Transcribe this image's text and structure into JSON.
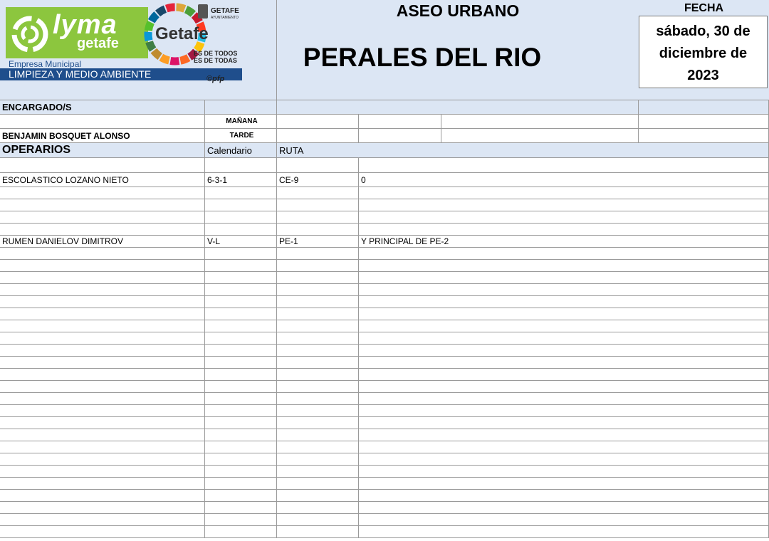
{
  "header": {
    "logo": {
      "brand": "lyma",
      "brand_sub": "getafe",
      "city": "Getafe",
      "council": "GETAFE",
      "council_sub": "AYUNTAMIENTO",
      "motto_1": "ES DE TODOS",
      "motto_2": "ES DE TODAS",
      "company": "Empresa Municipal",
      "department": "LIMPIEZA Y MEDIO AMBIENTE",
      "credit": "©pfp"
    },
    "title": "ASEO URBANO",
    "zone": "PERALES DEL RIO",
    "date_label": "FECHA",
    "date": "sábado, 30 de diciembre de 2023"
  },
  "encargados": {
    "label": "ENCARGADO/S",
    "morning_label": "MAÑANA",
    "afternoon_label": "TARDE",
    "afternoon_name": "BENJAMIN BOSQUET ALONSO"
  },
  "operarios": {
    "label": "OPERARIOS",
    "columns": [
      "Calendario",
      "RUTA"
    ],
    "rows": [
      [
        "ESCOLASTICO LOZANO NIETO",
        "6-3-1",
        "CE-9",
        "0"
      ],
      [
        "RUMEN DANIELOV DIMITROV",
        "V-L",
        "PE-1",
        "Y PRINCIPAL DE  PE-2"
      ]
    ]
  }
}
